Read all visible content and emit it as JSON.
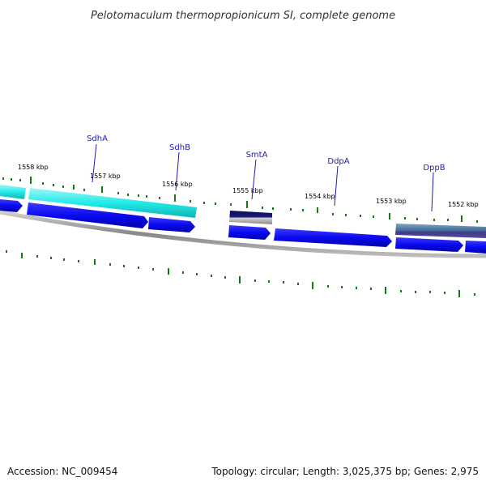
{
  "title": "Pelotomaculum thermopropionicum SI, complete genome",
  "footer": {
    "accession": "Accession: NC_009454",
    "summary": "Topology: circular; Length: 3,025,375 bp; Genes: 2,975"
  },
  "kbp_labels": [
    "1558 kbp",
    "1557 kbp",
    "1556 kbp",
    "1555 kbp",
    "1554 kbp",
    "1553 kbp",
    "1552 kbp"
  ],
  "genes": [
    {
      "name": "SdhA"
    },
    {
      "name": "SdhB"
    },
    {
      "name": "SmtA"
    },
    {
      "name": "DdpA"
    },
    {
      "name": "DppB"
    }
  ],
  "colors": {
    "cds_forward": "#0a0af0",
    "highlight_cyan": "#22eaea",
    "highlight_dark": "#1a1a7a",
    "highlight_steel": "#4a6f9a",
    "backbone": "#888888",
    "tick": "#137a13",
    "label": "#1a1ab8"
  }
}
